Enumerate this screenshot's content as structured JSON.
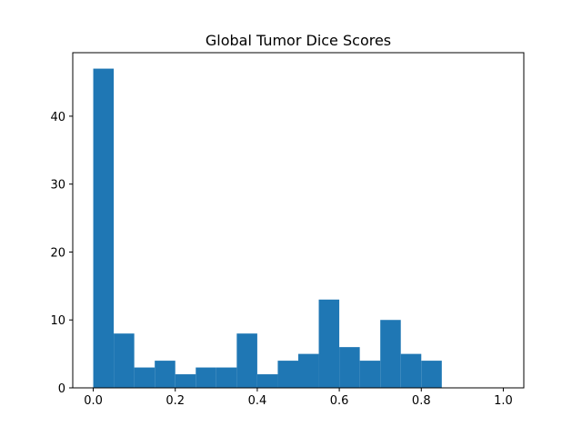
{
  "chart_data": {
    "type": "bar",
    "title": "Global Tumor Dice Scores",
    "xlabel": "",
    "ylabel": "",
    "bin_edges": [
      0.0,
      0.05,
      0.1,
      0.15,
      0.2,
      0.25,
      0.3,
      0.35,
      0.4,
      0.45,
      0.5,
      0.55,
      0.6,
      0.65,
      0.7,
      0.75,
      0.8,
      0.85,
      0.9,
      0.95,
      1.0
    ],
    "values": [
      47,
      8,
      3,
      4,
      2,
      3,
      3,
      8,
      2,
      4,
      5,
      13,
      6,
      4,
      10,
      5,
      4,
      0,
      0,
      0
    ],
    "xlim": [
      -0.05,
      1.05
    ],
    "ylim": [
      0,
      49.35
    ],
    "xticks": [
      0.0,
      0.2,
      0.4,
      0.6,
      0.8,
      1.0
    ],
    "xtick_labels": [
      "0.0",
      "0.2",
      "0.4",
      "0.6",
      "0.8",
      "1.0"
    ],
    "yticks": [
      0,
      10,
      20,
      30,
      40
    ],
    "ytick_labels": [
      "0",
      "10",
      "20",
      "30",
      "40"
    ],
    "bar_color": "#1f77b4",
    "grid": false,
    "legend": "none"
  }
}
